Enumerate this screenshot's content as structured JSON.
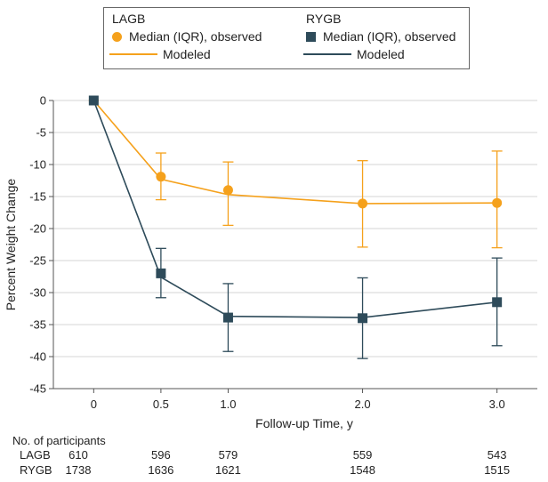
{
  "colors": {
    "lagb": "#f5a11c",
    "rygb": "#2e4b5a"
  },
  "legend": {
    "groups": [
      {
        "key": "lagb",
        "title": "LAGB",
        "marker_label": "Median (IQR), observed",
        "line_label": "Modeled",
        "marker": "circle"
      },
      {
        "key": "rygb",
        "title": "RYGB",
        "marker_label": "Median (IQR), observed",
        "line_label": "Modeled",
        "marker": "square"
      }
    ]
  },
  "chart_data": {
    "type": "line",
    "xlabel": "Follow-up Time, y",
    "ylabel": "Percent Weight Change",
    "xlim": [
      -0.3,
      3.3
    ],
    "ylim": [
      -45,
      0
    ],
    "x_ticks": [
      0,
      0.5,
      1.0,
      2.0,
      3.0
    ],
    "x_tick_labels": [
      "0",
      "0.5",
      "1.0",
      "2.0",
      "3.0"
    ],
    "y_ticks": [
      0,
      -5,
      -10,
      -15,
      -20,
      -25,
      -30,
      -35,
      -40,
      -45
    ],
    "y_tick_labels": [
      "0",
      "-5",
      "-10",
      "-15",
      "-20",
      "-25",
      "-30",
      "-35",
      "-40",
      "-45"
    ],
    "grid": true,
    "series": [
      {
        "name": "LAGB",
        "observed": [
          {
            "x": 0,
            "y": 0,
            "low": 0,
            "high": 0
          },
          {
            "x": 0.5,
            "y": -11.9,
            "low": -15.5,
            "high": -8.2
          },
          {
            "x": 1.0,
            "y": -14.0,
            "low": -19.5,
            "high": -9.6
          },
          {
            "x": 2.0,
            "y": -16.1,
            "low": -22.9,
            "high": -9.4
          },
          {
            "x": 3.0,
            "y": -16.0,
            "low": -23.0,
            "high": -7.9
          }
        ],
        "modeled": [
          {
            "x": 0,
            "y": 0
          },
          {
            "x": 0.5,
            "y": -12.3
          },
          {
            "x": 1.0,
            "y": -14.7
          },
          {
            "x": 2.0,
            "y": -16.1
          },
          {
            "x": 3.0,
            "y": -16.0
          }
        ]
      },
      {
        "name": "RYGB",
        "observed": [
          {
            "x": 0,
            "y": 0,
            "low": 0,
            "high": 0
          },
          {
            "x": 0.5,
            "y": -27.0,
            "low": -30.8,
            "high": -23.1
          },
          {
            "x": 1.0,
            "y": -33.9,
            "low": -39.2,
            "high": -28.6
          },
          {
            "x": 2.0,
            "y": -34.0,
            "low": -40.3,
            "high": -27.7
          },
          {
            "x": 3.0,
            "y": -31.5,
            "low": -38.3,
            "high": -24.6
          }
        ],
        "modeled": [
          {
            "x": 0,
            "y": 0
          },
          {
            "x": 0.5,
            "y": -27.6
          },
          {
            "x": 1.0,
            "y": -33.7
          },
          {
            "x": 2.0,
            "y": -33.9
          },
          {
            "x": 3.0,
            "y": -31.5
          }
        ]
      }
    ]
  },
  "participants": {
    "title": "No. of participants",
    "rows": [
      {
        "label": "LAGB",
        "values": [
          "610",
          "596",
          "579",
          "559",
          "543"
        ]
      },
      {
        "label": "RYGB",
        "values": [
          "1738",
          "1636",
          "1621",
          "1548",
          "1515"
        ]
      }
    ]
  }
}
